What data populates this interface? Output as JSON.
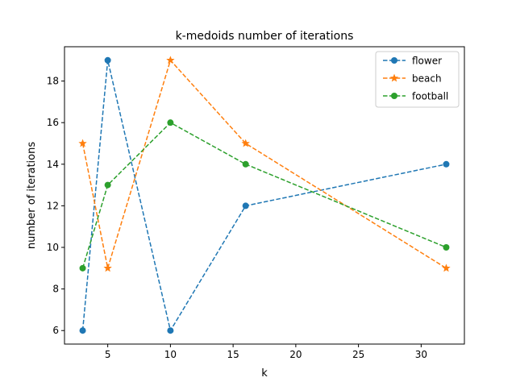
{
  "chart_data": {
    "type": "line",
    "title": "k-medoids number of iterations",
    "xlabel": "k",
    "ylabel": "number of iterations",
    "xlim": [
      1.55,
      33.45
    ],
    "ylim": [
      5.35,
      19.65
    ],
    "xticks": [
      5,
      10,
      15,
      20,
      25,
      30
    ],
    "yticks": [
      6,
      8,
      10,
      12,
      14,
      16,
      18
    ],
    "x": [
      3,
      5,
      10,
      16,
      32
    ],
    "series": [
      {
        "name": "flower",
        "values": [
          6,
          19,
          6,
          12,
          14
        ],
        "color": "#1f77b4",
        "marker": "circle"
      },
      {
        "name": "beach",
        "values": [
          15,
          9,
          19,
          15,
          9
        ],
        "color": "#ff7f0e",
        "marker": "star"
      },
      {
        "name": "football",
        "values": [
          9,
          13,
          16,
          14,
          10
        ],
        "color": "#2ca02c",
        "marker": "circle"
      }
    ],
    "line_style": "dashed",
    "legend_position": "top-right",
    "grid": false
  }
}
